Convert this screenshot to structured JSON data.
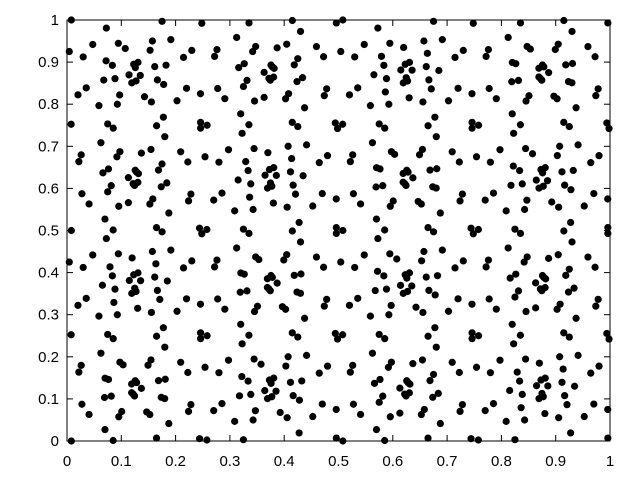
{
  "chart_data": {
    "type": "scatter",
    "title": "",
    "xlabel": "",
    "ylabel": "",
    "xlim": [
      0,
      1
    ],
    "ylim": [
      0,
      1
    ],
    "grid": false,
    "legend": "none",
    "x_ticks": [
      0,
      0.1,
      0.2,
      0.3,
      0.4,
      0.5,
      0.6,
      0.7,
      0.8,
      0.9,
      1
    ],
    "y_ticks": [
      0,
      0.1,
      0.2,
      0.3,
      0.4,
      0.5,
      0.6,
      0.7,
      0.8,
      0.9,
      1
    ],
    "x_tick_labels": [
      "0",
      "0.1",
      "0.2",
      "0.3",
      "0.4",
      "0.5",
      "0.6",
      "0.7",
      "0.8",
      "0.9",
      "1"
    ],
    "y_tick_labels": [
      "0",
      "0.1",
      "0.2",
      "0.3",
      "0.4",
      "0.5",
      "0.6",
      "0.7",
      "0.8",
      "0.9",
      "1"
    ],
    "marker_color": "#000000",
    "pattern": {
      "cell_size": 0.25,
      "ring_centers_offset": [
        0,
        0
      ],
      "ring_radii": [
        0.0,
        0.075,
        0.165
      ],
      "ring_counts": [
        3,
        10,
        18
      ],
      "secondary_centers_offset": [
        0.125,
        0.125
      ],
      "secondary_radii": [
        0.012,
        0.06
      ],
      "secondary_counts": [
        3,
        8
      ]
    }
  }
}
